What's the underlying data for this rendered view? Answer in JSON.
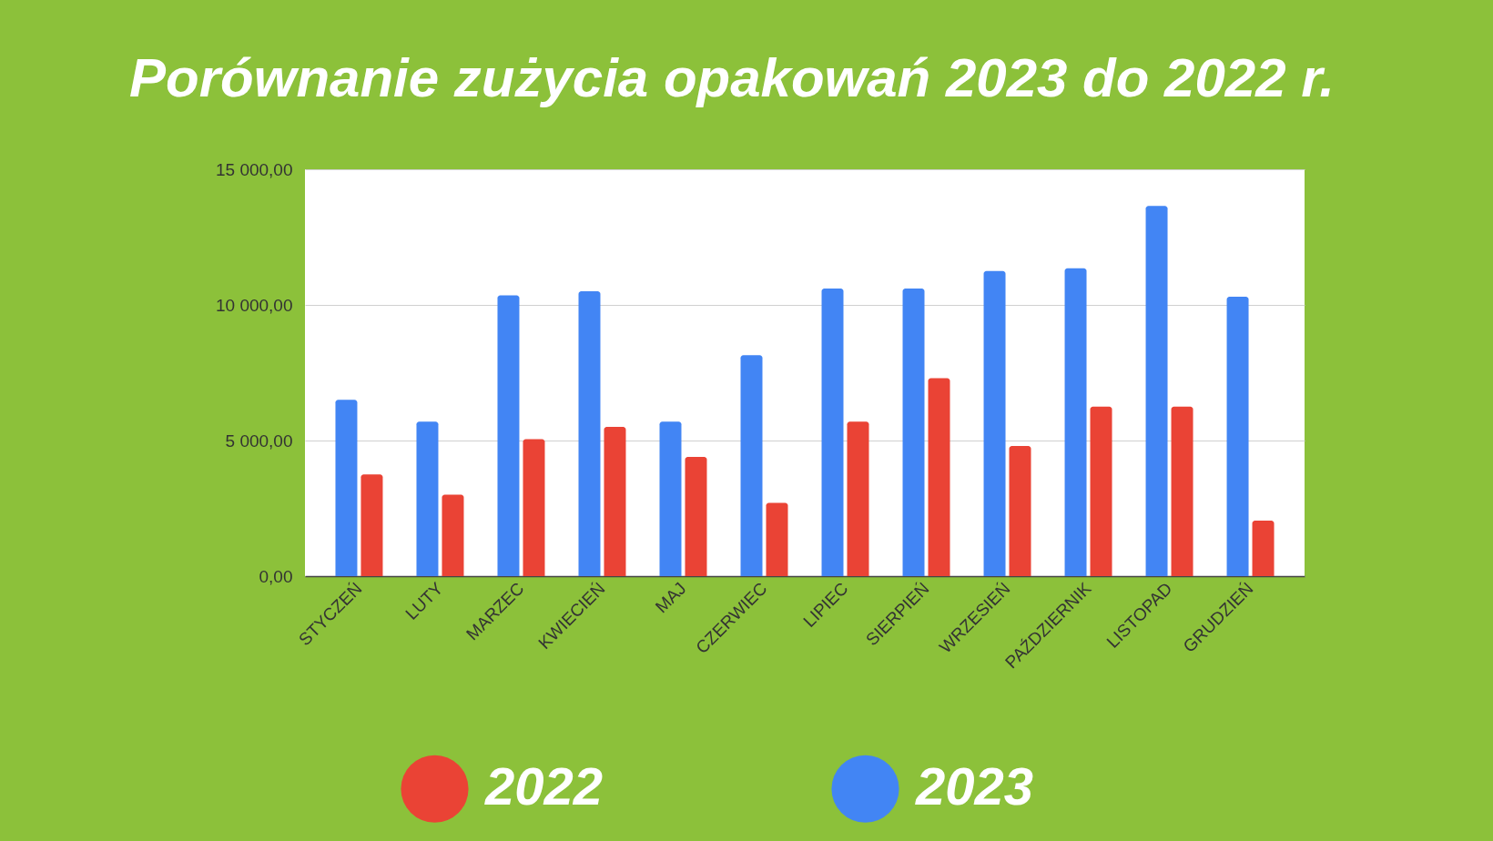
{
  "chart_data": {
    "type": "bar",
    "title": "Porównanie zużycia opakowań 2023 do 2022 r.",
    "categories": [
      "STYCZEŃ",
      "LUTY",
      "MARZEC",
      "KWIECIEŃ",
      "MAJ",
      "CZERWIEC",
      "LIPIEC",
      "SIERPIEŃ",
      "WRZESIEŃ",
      "PAŹDZIERNIK",
      "LISTOPAD",
      "GRUDZIEŃ"
    ],
    "series": [
      {
        "name": "2023",
        "color": "#4285f4",
        "values": [
          6500,
          5700,
          10350,
          10500,
          5700,
          8150,
          10600,
          10600,
          11250,
          11350,
          13650,
          10300
        ]
      },
      {
        "name": "2022",
        "color": "#ea4335",
        "values": [
          3750,
          3000,
          5050,
          5500,
          4400,
          2700,
          5700,
          7300,
          4800,
          6250,
          6250,
          2050
        ]
      }
    ],
    "ylim": [
      0,
      15000
    ],
    "yticks": [
      {
        "value": 0,
        "label": "0,00"
      },
      {
        "value": 5000,
        "label": "5 000,00"
      },
      {
        "value": 10000,
        "label": "10 000,00"
      },
      {
        "value": 15000,
        "label": "15 000,00"
      }
    ],
    "grid": "y",
    "legend": "bottom"
  }
}
